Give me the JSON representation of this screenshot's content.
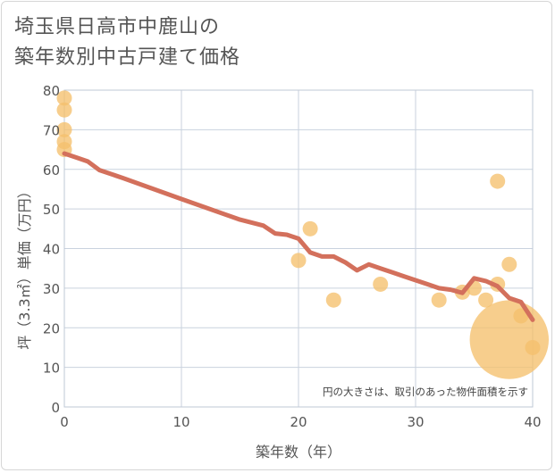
{
  "title_line1": "埼玉県日高市中鹿山の",
  "title_line2": "築年数別中古戸建て価格",
  "chart_data": {
    "type": "scatter",
    "title": "埼玉県日高市中鹿山の築年数別中古戸建て価格",
    "xlabel": "築年数（年）",
    "ylabel": "坪（3.3㎡）単価（万円）",
    "xlim": [
      0,
      40
    ],
    "ylim": [
      0,
      80
    ],
    "xticks": [
      0,
      10,
      20,
      30,
      40
    ],
    "yticks": [
      0,
      10,
      20,
      30,
      40,
      50,
      60,
      70,
      80
    ],
    "grid": true,
    "note": "円の大きさは、取引のあった物件面積を示す",
    "colors": {
      "points": "#f5c06d",
      "trend": "#d3705c"
    },
    "points": [
      {
        "x": 0,
        "y": 78,
        "size": 1
      },
      {
        "x": 0,
        "y": 75,
        "size": 1
      },
      {
        "x": 0,
        "y": 70,
        "size": 1
      },
      {
        "x": 0,
        "y": 67,
        "size": 1
      },
      {
        "x": 0,
        "y": 65,
        "size": 1
      },
      {
        "x": 20,
        "y": 37,
        "size": 1
      },
      {
        "x": 21,
        "y": 45,
        "size": 1
      },
      {
        "x": 23,
        "y": 27,
        "size": 1
      },
      {
        "x": 27,
        "y": 31,
        "size": 1
      },
      {
        "x": 32,
        "y": 27,
        "size": 1
      },
      {
        "x": 34,
        "y": 29,
        "size": 1
      },
      {
        "x": 35,
        "y": 30,
        "size": 1
      },
      {
        "x": 36,
        "y": 27,
        "size": 1
      },
      {
        "x": 37,
        "y": 57,
        "size": 1
      },
      {
        "x": 37,
        "y": 31,
        "size": 1
      },
      {
        "x": 38,
        "y": 36,
        "size": 1
      },
      {
        "x": 38,
        "y": 17,
        "size": 5.2
      },
      {
        "x": 39,
        "y": 23,
        "size": 1
      },
      {
        "x": 40,
        "y": 15,
        "size": 1
      }
    ],
    "trend": {
      "x": [
        0,
        1,
        2,
        3,
        5,
        10,
        15,
        17,
        18,
        19,
        20,
        21,
        22,
        23,
        24,
        25,
        26,
        27,
        28,
        29,
        30,
        31,
        32,
        33,
        34,
        35,
        36,
        37,
        38,
        39,
        40
      ],
      "y": [
        64,
        63,
        62,
        59.8,
        57.8,
        52.5,
        47.3,
        45.8,
        43.8,
        43.5,
        42.5,
        39,
        38,
        38,
        36.5,
        34.5,
        36,
        35,
        34,
        33,
        32,
        31,
        30,
        29.6,
        28.8,
        32.5,
        31.8,
        30.5,
        27.5,
        26.5,
        22
      ]
    }
  }
}
